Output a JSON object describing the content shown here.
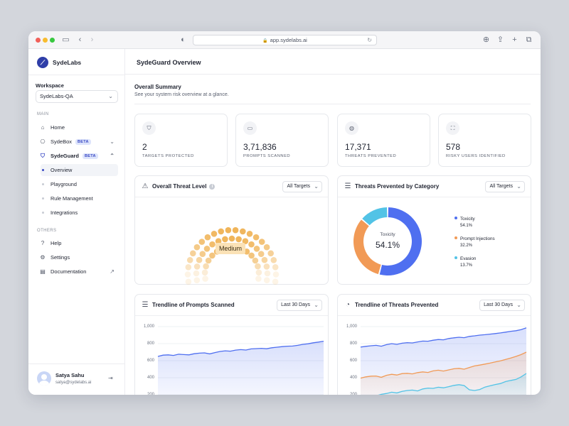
{
  "browser": {
    "url": "app.sydelabs.ai"
  },
  "brand": {
    "name": "SydeLabs"
  },
  "workspace": {
    "label": "Workspace",
    "value": "SydeLabs-QA"
  },
  "nav": {
    "main_label": "MAIN",
    "home": "Home",
    "sydebox": "SydeBox",
    "sydebox_badge": "BETA",
    "sydeguard": "SydeGuard",
    "sydeguard_badge": "BETA",
    "sub": [
      "Overview",
      "Playground",
      "Rule Management",
      "Integrations"
    ],
    "others_label": "OTHERS",
    "help": "Help",
    "settings": "Settings",
    "documentation": "Documentation"
  },
  "user": {
    "name": "Satya Sahu",
    "email": "satya@sydelabs.ai"
  },
  "page": {
    "title": "SydeGuard Overview"
  },
  "summary": {
    "title": "Overall Summary",
    "subtitle": "See your system risk overview at a glance."
  },
  "stats": [
    {
      "value": "2",
      "label": "TARGETS PROTECTED",
      "icon": "shield-icon"
    },
    {
      "value": "3,71,836",
      "label": "PROMPTS SCANNED",
      "icon": "prompt-icon"
    },
    {
      "value": "17,371",
      "label": "THREATS PREVENTED",
      "icon": "globe-icon"
    },
    {
      "value": "578",
      "label": "RISKY USERS IDENTIFIED",
      "icon": "scan-user-icon"
    }
  ],
  "threat_level": {
    "title": "Overall Threat Level",
    "filter": "All Targets",
    "level": "Medium",
    "fraction": 0.5
  },
  "category": {
    "title": "Threats Prevented by Category",
    "filter": "All Targets",
    "center_label": "Toxicity",
    "center_value": "54.1%"
  },
  "prompts_trend": {
    "title": "Trendline of Prompts Scanned",
    "filter": "Last 30 Days"
  },
  "threats_trend": {
    "title": "Trendline of Threats Prevented",
    "filter": "Last 30 Days"
  },
  "colors": {
    "blue": "#4f6ff0",
    "orange": "#f19a56",
    "cyan": "#52c3e6",
    "amber": "#f0b55a"
  },
  "chart_data": [
    {
      "type": "pie",
      "title": "Threats Prevented by Category",
      "categories": [
        "Toxicity",
        "Prompt Injections",
        "Evasion"
      ],
      "values": [
        54.1,
        32.2,
        13.7
      ],
      "labels": [
        "54.1%",
        "32.2%",
        "13.7%"
      ],
      "legend": "right"
    },
    {
      "type": "area",
      "title": "Trendline of Prompts Scanned",
      "yticks": [
        "1,000",
        "800",
        "600",
        "400",
        "200"
      ],
      "ylim": [
        200,
        1000
      ],
      "series": [
        {
          "values": [
            650,
            665,
            668,
            662,
            676,
            672,
            668,
            682,
            688,
            692,
            680,
            695,
            708,
            716,
            712,
            724,
            730,
            725,
            738,
            742,
            745,
            740,
            752,
            758,
            765,
            770,
            772,
            780,
            792,
            798,
            810,
            818,
            828
          ]
        }
      ]
    },
    {
      "type": "area",
      "title": "Trendline of Threats Prevented",
      "yticks": [
        "1,000",
        "800",
        "600",
        "400",
        "200"
      ],
      "ylim": [
        150,
        1000
      ],
      "series": [
        {
          "name": "Toxicity",
          "values": [
            760,
            768,
            775,
            780,
            770,
            788,
            800,
            792,
            805,
            812,
            808,
            820,
            830,
            828,
            840,
            848,
            845,
            860,
            868,
            875,
            870,
            885,
            892,
            900,
            905,
            912,
            918,
            926,
            935,
            945,
            952,
            965,
            985
          ]
        },
        {
          "name": "Prompt Injections",
          "values": [
            395,
            410,
            418,
            420,
            405,
            428,
            440,
            432,
            448,
            452,
            445,
            460,
            468,
            462,
            480,
            488,
            478,
            492,
            505,
            510,
            500,
            520,
            538,
            548,
            560,
            572,
            585,
            598,
            615,
            632,
            650,
            672,
            700
          ]
        },
        {
          "name": "Evasion",
          "values": [
            165,
            182,
            195,
            188,
            205,
            215,
            230,
            222,
            240,
            250,
            255,
            245,
            268,
            278,
            275,
            288,
            282,
            295,
            310,
            318,
            308,
            258,
            250,
            262,
            290,
            305,
            320,
            332,
            355,
            368,
            380,
            410,
            450
          ]
        }
      ]
    }
  ]
}
